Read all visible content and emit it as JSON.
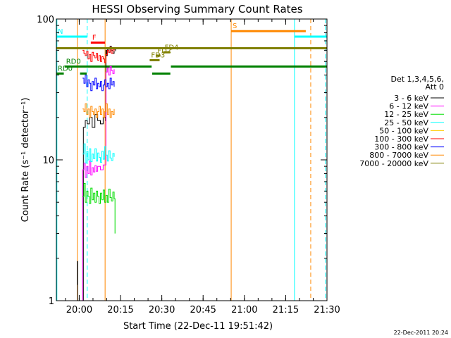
{
  "chart_data": {
    "type": "line",
    "title": "HESSI Observing Summary Count Rates",
    "xlabel": "Start Time (22-Dec-11 19:51:42)",
    "ylabel": "Count Rate (s⁻¹ detector⁻¹)",
    "x_unit": "minutes since 19:51:42",
    "xlim": [
      0,
      98.3
    ],
    "ylim": [
      1,
      100
    ],
    "y_scale": "log",
    "x_ticks": [
      {
        "value": 8.3,
        "label": "20:00"
      },
      {
        "value": 23.3,
        "label": "20:15"
      },
      {
        "value": 38.3,
        "label": "20:30"
      },
      {
        "value": 53.3,
        "label": "20:45"
      },
      {
        "value": 68.3,
        "label": "21:00"
      },
      {
        "value": 83.3,
        "label": "21:15"
      },
      {
        "value": 98.3,
        "label": "21:30"
      }
    ],
    "y_ticks": [
      {
        "value": 1,
        "label": "1"
      },
      {
        "value": 10,
        "label": "10"
      },
      {
        "value": 100,
        "label": "100"
      }
    ],
    "legend": {
      "placement": "right",
      "header": [
        "Det 1,3,4,5,6,",
        "Att 0"
      ],
      "entries": [
        {
          "label": "3 - 6 keV",
          "color": "#000000"
        },
        {
          "label": "6 - 12 keV",
          "color": "#ff00ff"
        },
        {
          "label": "12 - 25 keV",
          "color": "#00dd00"
        },
        {
          "label": "25 - 50 keV",
          "color": "#00ffff"
        },
        {
          "label": "50 - 100 keV",
          "color": "#ffcc00"
        },
        {
          "label": "100 - 300 keV",
          "color": "#ff0000"
        },
        {
          "label": "300 - 800 keV",
          "color": "#0000ff"
        },
        {
          "label": "800 - 7000 keV",
          "color": "#ff8800"
        },
        {
          "label": "7000 - 20000 keV",
          "color": "#808000"
        }
      ]
    },
    "series": [
      {
        "name": "3 - 6 keV",
        "color": "#000000",
        "x": [
          7.5,
          7.6,
          7.7,
          9.8,
          10.5,
          11.2,
          12,
          13,
          14,
          15,
          16,
          17,
          17.9,
          18.0,
          18.2,
          18.5,
          19,
          19.5,
          20,
          20.5,
          21,
          21.5
        ],
        "y": [
          1.3,
          1.9,
          1.0,
          17,
          19,
          18,
          20,
          17,
          21,
          19,
          18,
          20,
          19,
          60,
          55,
          62,
          58,
          64,
          60,
          57,
          61,
          59
        ]
      },
      {
        "name": "6 - 12 keV",
        "color": "#ff00ff",
        "x": [
          7.6,
          9.5,
          10,
          10.5,
          11,
          11.5,
          12,
          12.5,
          13,
          13.5,
          14,
          14.5,
          15,
          16,
          17,
          18,
          18.5,
          19,
          19.5,
          20,
          20.5,
          21
        ],
        "y": [
          1.0,
          8.5,
          9.5,
          7.5,
          9,
          8,
          9.8,
          7.8,
          8.8,
          8.2,
          9.1,
          8.3,
          9.0,
          8.5,
          9.2,
          42,
          45,
          40,
          46,
          43,
          41,
          44
        ]
      },
      {
        "name": "12 - 25 keV",
        "color": "#00dd00",
        "x": [
          9.5,
          10,
          10.5,
          11,
          11.5,
          12,
          12.5,
          13,
          13.5,
          14,
          14.5,
          15,
          15.5,
          16,
          16.5,
          17,
          17.5,
          18,
          18.5,
          19,
          19.5,
          20,
          20.5,
          21,
          21.3
        ],
        "y": [
          5.5,
          6.8,
          5.0,
          6.0,
          5.5,
          4.9,
          6.3,
          5.2,
          5.8,
          5.0,
          6.0,
          5.5,
          4.9,
          5.8,
          5.2,
          6.1,
          5.0,
          5.6,
          5.0,
          6.2,
          5.4,
          5.1,
          5.9,
          5.3,
          3.0
        ]
      },
      {
        "name": "25 - 50 keV",
        "color": "#00ffff",
        "x": [
          9.5,
          10,
          10.5,
          11,
          11.5,
          12,
          12.5,
          13,
          13.5,
          14,
          14.5,
          15,
          15.5,
          16,
          16.5,
          17,
          17.5,
          18,
          18.5,
          19,
          19.5,
          20,
          20.5,
          21
        ],
        "y": [
          11,
          13,
          9.5,
          11.5,
          10,
          12,
          9.7,
          11,
          10.2,
          12,
          9.8,
          11.2,
          10.4,
          9.6,
          11.5,
          10.1,
          12.4,
          10.8,
          9.8,
          11.6,
          10.3,
          9.9,
          11.1,
          10.5
        ]
      },
      {
        "name": "100 - 300 keV",
        "color": "#ff0000",
        "x": [
          9.5,
          10,
          10.5,
          11,
          11.5,
          12,
          12.5,
          13,
          13.5,
          14,
          14.5,
          15,
          15.5,
          16,
          16.5,
          17,
          17.5,
          18,
          18.5,
          19,
          19.5,
          20,
          20.5,
          21
        ],
        "y": [
          60,
          57,
          55,
          59,
          52,
          56,
          50,
          58,
          55,
          53,
          57,
          51,
          55,
          50,
          54,
          52,
          49,
          56,
          60,
          58,
          63,
          57,
          61,
          59
        ]
      },
      {
        "name": "300 - 800 keV",
        "color": "#0000ff",
        "x": [
          9.5,
          10,
          10.5,
          11,
          11.5,
          12,
          12.5,
          13,
          13.5,
          14,
          14.5,
          15,
          15.5,
          16,
          16.5,
          17,
          17.5,
          18,
          18.5,
          19,
          19.5,
          20,
          20.5,
          21
        ],
        "y": [
          38,
          35,
          40,
          33,
          37,
          35,
          31,
          36,
          34,
          38,
          32,
          35,
          33,
          36,
          31,
          34,
          37,
          33,
          35,
          32,
          38,
          34,
          36,
          33
        ]
      },
      {
        "name": "800 - 7000 keV",
        "color": "#ff8800",
        "x": [
          9.5,
          10,
          10.5,
          11,
          11.5,
          12,
          12.5,
          13,
          13.5,
          14,
          14.5,
          15,
          15.5,
          16,
          16.5,
          17,
          17.5,
          18,
          18.5,
          19,
          19.5,
          20,
          20.5,
          21
        ],
        "y": [
          23,
          22,
          25,
          21,
          23,
          20,
          24,
          22,
          21,
          23,
          20,
          22,
          24,
          21,
          23,
          20,
          22,
          25,
          21,
          23,
          20,
          22,
          21,
          23
        ]
      },
      {
        "name": "7000 - 20000 keV",
        "color": "#808000",
        "x": [
          0,
          98.3
        ],
        "y": [
          62,
          62
        ]
      }
    ],
    "segments": [
      {
        "label": "N",
        "color": "#00ffff",
        "x0": 0,
        "x1": 11.2,
        "y": 75
      },
      {
        "label": "",
        "color": "#00ffff",
        "x0": 86.5,
        "x1": 98.3,
        "y": 75
      },
      {
        "label": "F",
        "color": "#ff0000",
        "x0": 12.5,
        "x1": 17.7,
        "y": 68
      },
      {
        "label": "S",
        "color": "#ff8800",
        "x0": 63.5,
        "x1": 90.6,
        "y": 82
      },
      {
        "label": "RD0",
        "color": "#008000",
        "x0": 3.0,
        "x1": 34.6,
        "y": 46
      },
      {
        "label": "",
        "color": "#008000",
        "x0": 41.6,
        "x1": 98.3,
        "y": 46
      },
      {
        "label": "RD0",
        "color": "#008000",
        "x0": 0,
        "x1": 2.7,
        "y": 41
      },
      {
        "label": "",
        "color": "#008000",
        "x0": 8.6,
        "x1": 11.0,
        "y": 41
      },
      {
        "label": "",
        "color": "#008000",
        "x0": 34.8,
        "x1": 41.4,
        "y": 41
      },
      {
        "label": "FD4",
        "color": "#808000",
        "x0": 38.8,
        "x1": 41.4,
        "y": 58
      },
      {
        "label": "FD2",
        "color": "#808000",
        "x0": 36.2,
        "x1": 37.8,
        "y": 55
      },
      {
        "label": "FD3",
        "color": "#808000",
        "x0": 33.9,
        "x1": 37.5,
        "y": 51
      }
    ],
    "vlines": [
      {
        "x": 0.2,
        "color": "#00ffff",
        "style": "solid"
      },
      {
        "x": 7.6,
        "color": "#ff8800",
        "style": "solid"
      },
      {
        "x": 11.2,
        "color": "#00ffff",
        "style": "dashed"
      },
      {
        "x": 17.7,
        "color": "#ff8800",
        "style": "solid"
      },
      {
        "x": 63.5,
        "color": "#ff8800",
        "style": "solid"
      },
      {
        "x": 86.5,
        "color": "#00ffff",
        "style": "solid"
      },
      {
        "x": 92.4,
        "color": "#ff8800",
        "style": "dashed"
      },
      {
        "x": 97.8,
        "color": "#00ffff",
        "style": "dashed"
      }
    ],
    "timestamp": "22-Dec-2011 20:24"
  }
}
